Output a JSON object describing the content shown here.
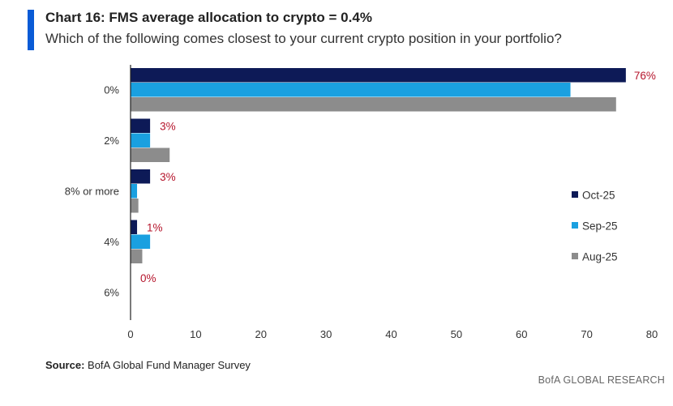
{
  "header": {
    "title": "Chart 16: FMS average allocation to crypto = 0.4%",
    "subtitle": "Which of the following comes closest to your current crypto position in your portfolio?",
    "accent_color": "#0a5bd6"
  },
  "source": {
    "label": "Source:",
    "text": "BofA Global Fund Manager Survey"
  },
  "footer": {
    "text": "BofA GLOBAL RESEARCH"
  },
  "chart_data": {
    "type": "bar",
    "orientation": "horizontal",
    "categories": [
      "0%",
      "2%",
      "8% or more",
      "4%",
      "6%"
    ],
    "series": [
      {
        "name": "Oct-25",
        "color": "#0d1a57",
        "values": [
          76,
          3,
          3,
          1,
          0
        ]
      },
      {
        "name": "Sep-25",
        "color": "#1aa0e0",
        "values": [
          67.5,
          3,
          1,
          3,
          0
        ]
      },
      {
        "name": "Aug-25",
        "color": "#8c8c8c",
        "values": [
          74.5,
          6,
          1.2,
          1.8,
          0
        ]
      }
    ],
    "data_labels": [
      "76%",
      "3%",
      "3%",
      "1%",
      "0%"
    ],
    "data_label_color": "#b5142b",
    "x_ticks": [
      "0",
      "10",
      "20",
      "30",
      "40",
      "50",
      "60",
      "70",
      "80"
    ],
    "xlim": [
      0,
      80
    ],
    "grid": false,
    "legend_position": "right"
  }
}
